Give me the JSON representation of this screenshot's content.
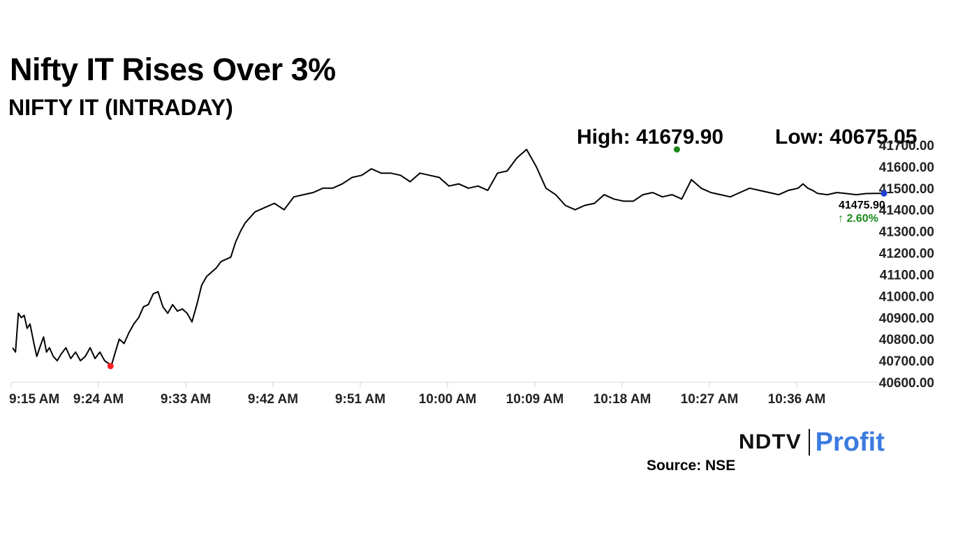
{
  "title": "Nifty IT Rises Over 3%",
  "subtitle": "NIFTY IT (INTRADAY)",
  "stats": {
    "high": "High: 41679.90",
    "low": "Low: 40675.05"
  },
  "last": {
    "value": "41475.90",
    "change": "↑ 2.60%"
  },
  "brand": {
    "ndtv": "NDTV",
    "profit": "Profit"
  },
  "source": "Source: NSE",
  "colors": {
    "line": "#000000",
    "high_marker": "#1a8a1a",
    "low_marker": "#ff2020",
    "last_marker": "#1f3fd6",
    "change_up": "#1a8a1a",
    "grid": "#dddddd"
  },
  "chart_data": {
    "type": "line",
    "title": "NIFTY IT (INTRADAY)",
    "xlabel": "",
    "ylabel": "",
    "x_ticks": [
      "9:15 AM",
      "9:24 AM",
      "9:33 AM",
      "9:42 AM",
      "9:51 AM",
      "10:00 AM",
      "10:09 AM",
      "10:18 AM",
      "10:27 AM",
      "10:36 AM"
    ],
    "y_ticks": [
      "40600.00",
      "40700.00",
      "40800.00",
      "40900.00",
      "41000.00",
      "41100.00",
      "41200.00",
      "41300.00",
      "41400.00",
      "41500.00",
      "41600.00",
      "41700.00"
    ],
    "ylim": [
      40600,
      41700
    ],
    "grid": false,
    "series": [
      {
        "x_minutes": [
          0,
          0.3,
          0.6,
          0.9,
          1.2,
          1.5,
          1.8,
          2.2,
          2.5,
          2.8,
          3.2,
          3.5,
          3.8,
          4.2,
          4.6,
          5.0,
          5.5,
          6.0,
          6.5,
          7.0,
          7.5,
          8.0,
          8.5,
          9.0,
          9.5,
          9.8,
          10.2,
          10.6,
          11.0,
          11.5,
          12.0,
          12.5,
          13.0,
          13.5,
          14.0,
          14.5,
          15.0,
          15.5,
          16.0,
          16.5,
          17.0,
          17.5,
          18.0,
          18.5,
          19.0,
          19.5,
          20.0,
          20.5,
          21.0,
          21.5,
          22.0,
          22.5,
          23.0,
          23.5,
          24.0,
          25.0,
          26.0,
          27.0,
          28.0,
          29.0,
          30.0,
          31.0,
          32.0,
          33.0,
          34.0,
          35.0,
          36.0,
          37.0,
          38.0,
          39.0,
          40.0,
          41.0,
          42.0,
          43.0,
          44.0,
          45.0,
          46.0,
          47.0,
          48.0,
          49.0,
          50.0,
          51.0,
          52.0,
          53.0,
          54.0,
          55.0,
          56.0,
          57.0,
          58.0,
          59.0,
          60.0,
          61.0,
          62.0,
          63.0,
          64.0,
          65.0,
          66.0,
          67.0,
          68.0,
          69.0,
          70.0,
          71.0,
          72.0,
          73.0,
          74.0,
          75.0,
          76.0,
          77.0,
          78.0,
          79.0,
          80.0,
          81.0,
          81.5,
          82.0,
          82.5,
          83.0,
          84.0,
          85.0,
          86.0,
          87.0,
          88.0,
          89.0,
          90.0
        ],
        "values": [
          40760,
          40740,
          40920,
          40900,
          40910,
          40850,
          40870,
          40780,
          40720,
          40760,
          40810,
          40740,
          40760,
          40720,
          40700,
          40730,
          40760,
          40710,
          40740,
          40700,
          40720,
          40760,
          40710,
          40740,
          40700,
          40690,
          40680,
          40740,
          40800,
          40780,
          40830,
          40870,
          40900,
          40950,
          40960,
          41010,
          41020,
          40950,
          40920,
          40960,
          40930,
          40940,
          40920,
          40880,
          40960,
          41050,
          41090,
          41110,
          41130,
          41160,
          41170,
          41180,
          41250,
          41300,
          41340,
          41390,
          41410,
          41430,
          41400,
          41460,
          41470,
          41480,
          41500,
          41500,
          41520,
          41550,
          41560,
          41590,
          41570,
          41570,
          41560,
          41530,
          41570,
          41560,
          41550,
          41510,
          41520,
          41500,
          41510,
          41490,
          41570,
          41580,
          41640,
          41680,
          41600,
          41500,
          41470,
          41420,
          41400,
          41420,
          41430,
          41470,
          41450,
          41440,
          41440,
          41470,
          41480,
          41460,
          41470,
          41450,
          41540,
          41500,
          41480,
          41470,
          41460,
          41480,
          41500,
          41490,
          41480,
          41470,
          41490,
          41500,
          41520,
          41500,
          41490,
          41475.9,
          41470,
          41480,
          41475,
          41470,
          41475,
          41476,
          41475.9
        ]
      }
    ],
    "annotations": {
      "high": {
        "x_minutes": 68.5,
        "value": 41679.9,
        "label": "High: 41679.90"
      },
      "low": {
        "x_minutes": 10.1,
        "value": 40675.05,
        "label": "Low: 40675.05"
      },
      "last": {
        "x_minutes": 90.0,
        "value": 41475.9,
        "label": "41475.90",
        "change": "↑ 2.60%"
      }
    }
  }
}
